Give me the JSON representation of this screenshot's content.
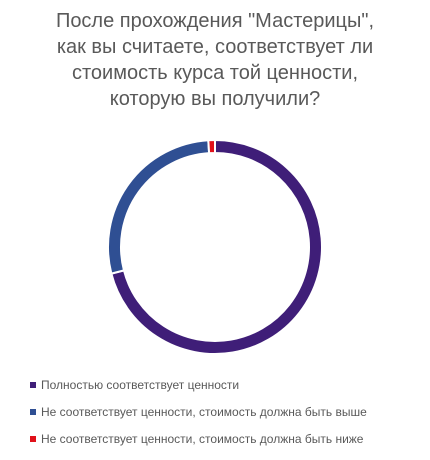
{
  "chart_data": {
    "type": "pie",
    "donut": true,
    "title_lines": [
      "После прохождения \"Мастерицы\",",
      "как вы считаете, соответствует ли",
      "стоимость курса той ценности,",
      "которую вы получили?"
    ],
    "categories": [
      "Полностью соответствует ценности",
      "Не соответствует ценности, стоимость должна быть выше",
      "Не соответствует ценности, стоимость должна быть ниже"
    ],
    "values": [
      71,
      28,
      1
    ],
    "colors": [
      "#3f1e78",
      "#2f4f93",
      "#e0111a"
    ],
    "legend_position": "bottom-left"
  }
}
